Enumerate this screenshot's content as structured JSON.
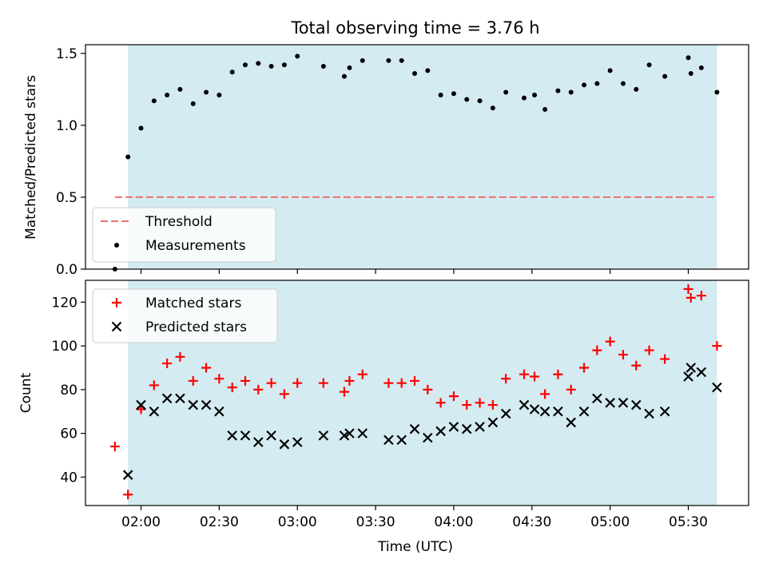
{
  "chart_data": [
    {
      "type": "scatter",
      "title": "Total observing time = 3.76 h",
      "xlabel": "",
      "ylabel": "Matched/Predicted stars",
      "ylim": [
        0,
        1.56
      ],
      "yticks": [
        "0.0",
        "0.5",
        "1.0",
        "1.5"
      ],
      "grid": false,
      "legend_position": "lower-left",
      "shaded_interval": {
        "start": "01:55",
        "end": "05:41",
        "color": "#d4ebf1"
      },
      "threshold": {
        "name": "Threshold",
        "value": 0.5,
        "from": "01:50",
        "to": "05:41",
        "color": "#f07070"
      },
      "series": [
        {
          "name": "Measurements",
          "color": "#000000",
          "points": [
            [
              "01:50",
              0.0
            ],
            [
              "01:55",
              0.78
            ],
            [
              "02:00",
              0.98
            ],
            [
              "02:05",
              1.17
            ],
            [
              "02:10",
              1.21
            ],
            [
              "02:15",
              1.25
            ],
            [
              "02:20",
              1.15
            ],
            [
              "02:25",
              1.23
            ],
            [
              "02:30",
              1.21
            ],
            [
              "02:35",
              1.37
            ],
            [
              "02:40",
              1.42
            ],
            [
              "02:45",
              1.43
            ],
            [
              "02:50",
              1.41
            ],
            [
              "02:55",
              1.42
            ],
            [
              "03:00",
              1.48
            ],
            [
              "03:10",
              1.41
            ],
            [
              "03:18",
              1.34
            ],
            [
              "03:20",
              1.4
            ],
            [
              "03:25",
              1.45
            ],
            [
              "03:35",
              1.45
            ],
            [
              "03:40",
              1.45
            ],
            [
              "03:45",
              1.36
            ],
            [
              "03:50",
              1.38
            ],
            [
              "03:55",
              1.21
            ],
            [
              "04:00",
              1.22
            ],
            [
              "04:05",
              1.18
            ],
            [
              "04:10",
              1.17
            ],
            [
              "04:15",
              1.12
            ],
            [
              "04:20",
              1.23
            ],
            [
              "04:27",
              1.19
            ],
            [
              "04:31",
              1.21
            ],
            [
              "04:35",
              1.11
            ],
            [
              "04:40",
              1.24
            ],
            [
              "04:45",
              1.23
            ],
            [
              "04:50",
              1.28
            ],
            [
              "04:55",
              1.29
            ],
            [
              "05:00",
              1.38
            ],
            [
              "05:05",
              1.29
            ],
            [
              "05:10",
              1.25
            ],
            [
              "05:15",
              1.42
            ],
            [
              "05:21",
              1.34
            ],
            [
              "05:30",
              1.47
            ],
            [
              "05:31",
              1.36
            ],
            [
              "05:35",
              1.4
            ],
            [
              "05:41",
              1.23
            ]
          ]
        }
      ]
    },
    {
      "type": "scatter",
      "title": "",
      "xlabel": "Time (UTC)",
      "ylabel": "Count",
      "ylim": [
        27,
        130
      ],
      "yticks": [
        "40",
        "60",
        "80",
        "100",
        "120"
      ],
      "xticks": [
        "02:00",
        "02:30",
        "03:00",
        "03:30",
        "04:00",
        "04:30",
        "05:00",
        "05:30"
      ],
      "grid": false,
      "legend_position": "top-left",
      "shaded_interval": {
        "start": "01:55",
        "end": "05:41",
        "color": "#d4ebf1"
      },
      "series": [
        {
          "name": "Matched stars",
          "color": "#ff0000",
          "marker": "plus",
          "points": [
            [
              "01:50",
              54
            ],
            [
              "01:55",
              32
            ],
            [
              "02:00",
              71
            ],
            [
              "02:05",
              82
            ],
            [
              "02:10",
              92
            ],
            [
              "02:15",
              95
            ],
            [
              "02:20",
              84
            ],
            [
              "02:25",
              90
            ],
            [
              "02:30",
              85
            ],
            [
              "02:35",
              81
            ],
            [
              "02:40",
              84
            ],
            [
              "02:45",
              80
            ],
            [
              "02:50",
              83
            ],
            [
              "02:55",
              78
            ],
            [
              "03:00",
              83
            ],
            [
              "03:10",
              83
            ],
            [
              "03:18",
              79
            ],
            [
              "03:20",
              84
            ],
            [
              "03:25",
              87
            ],
            [
              "03:35",
              83
            ],
            [
              "03:40",
              83
            ],
            [
              "03:45",
              84
            ],
            [
              "03:50",
              80
            ],
            [
              "03:55",
              74
            ],
            [
              "04:00",
              77
            ],
            [
              "04:05",
              73
            ],
            [
              "04:10",
              74
            ],
            [
              "04:15",
              73
            ],
            [
              "04:20",
              85
            ],
            [
              "04:27",
              87
            ],
            [
              "04:31",
              86
            ],
            [
              "04:35",
              78
            ],
            [
              "04:40",
              87
            ],
            [
              "04:45",
              80
            ],
            [
              "04:50",
              90
            ],
            [
              "04:55",
              98
            ],
            [
              "05:00",
              102
            ],
            [
              "05:05",
              96
            ],
            [
              "05:10",
              91
            ],
            [
              "05:15",
              98
            ],
            [
              "05:21",
              94
            ],
            [
              "05:30",
              126
            ],
            [
              "05:31",
              122
            ],
            [
              "05:35",
              123
            ],
            [
              "05:41",
              100
            ]
          ]
        },
        {
          "name": "Predicted stars",
          "color": "#000000",
          "marker": "x",
          "points": [
            [
              "01:55",
              41
            ],
            [
              "02:00",
              73
            ],
            [
              "02:05",
              70
            ],
            [
              "02:10",
              76
            ],
            [
              "02:15",
              76
            ],
            [
              "02:20",
              73
            ],
            [
              "02:25",
              73
            ],
            [
              "02:30",
              70
            ],
            [
              "02:35",
              59
            ],
            [
              "02:40",
              59
            ],
            [
              "02:45",
              56
            ],
            [
              "02:50",
              59
            ],
            [
              "02:55",
              55
            ],
            [
              "03:00",
              56
            ],
            [
              "03:10",
              59
            ],
            [
              "03:18",
              59
            ],
            [
              "03:20",
              60
            ],
            [
              "03:25",
              60
            ],
            [
              "03:35",
              57
            ],
            [
              "03:40",
              57
            ],
            [
              "03:45",
              62
            ],
            [
              "03:50",
              58
            ],
            [
              "03:55",
              61
            ],
            [
              "04:00",
              63
            ],
            [
              "04:05",
              62
            ],
            [
              "04:10",
              63
            ],
            [
              "04:15",
              65
            ],
            [
              "04:20",
              69
            ],
            [
              "04:27",
              73
            ],
            [
              "04:31",
              71
            ],
            [
              "04:35",
              70
            ],
            [
              "04:40",
              70
            ],
            [
              "04:45",
              65
            ],
            [
              "04:50",
              70
            ],
            [
              "04:55",
              76
            ],
            [
              "05:00",
              74
            ],
            [
              "05:05",
              74
            ],
            [
              "05:10",
              73
            ],
            [
              "05:15",
              69
            ],
            [
              "05:21",
              70
            ],
            [
              "05:30",
              86
            ],
            [
              "05:31",
              90
            ],
            [
              "05:35",
              88
            ],
            [
              "05:41",
              81
            ]
          ]
        }
      ]
    }
  ]
}
